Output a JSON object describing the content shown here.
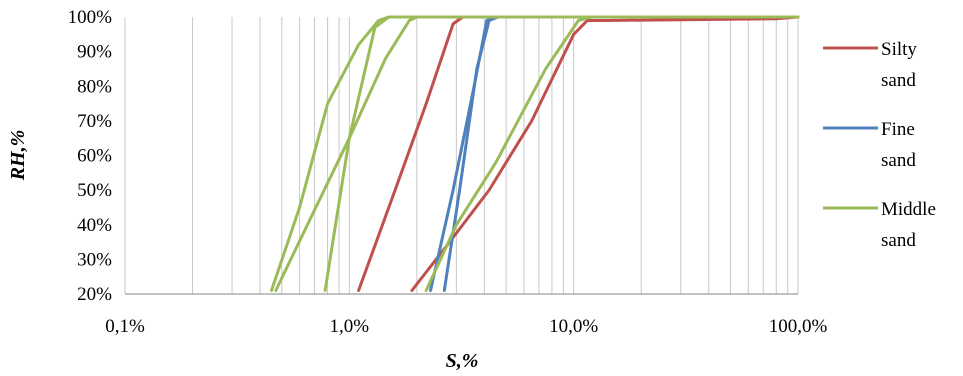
{
  "chart_data": {
    "type": "line",
    "x_scale": "log",
    "xlim": [
      0.1,
      100
    ],
    "ylim": [
      20,
      100
    ],
    "xlabel": "S,%",
    "ylabel": "RH,%",
    "x_ticks": [
      0.1,
      1,
      10,
      100
    ],
    "x_tick_labels": [
      "0,1%",
      "1,0%",
      "10,0%",
      "100,0%"
    ],
    "y_ticks": [
      20,
      30,
      40,
      50,
      60,
      70,
      80,
      90,
      100
    ],
    "y_tick_labels": [
      "20%",
      "30%",
      "40%",
      "50%",
      "60%",
      "70%",
      "80%",
      "90%",
      "100%"
    ],
    "grid": "vertical",
    "legend_position": "right",
    "series": [
      {
        "name": "Silty sand",
        "color": "#c0504d",
        "curves": [
          [
            [
              1.1,
              21
            ],
            [
              1.6,
              50
            ],
            [
              2.2,
              75
            ],
            [
              2.9,
              98
            ],
            [
              3.2,
              100
            ],
            [
              10,
              100
            ],
            [
              100,
              100
            ]
          ],
          [
            [
              1.9,
              21
            ],
            [
              2.8,
              35
            ],
            [
              4.2,
              50
            ],
            [
              6.5,
              70
            ],
            [
              10,
              95
            ],
            [
              11.5,
              99
            ],
            [
              14,
              99
            ],
            [
              80,
              99.5
            ],
            [
              100,
              100
            ]
          ]
        ]
      },
      {
        "name": "Fine sand",
        "color": "#4f81bd",
        "curves": [
          [
            [
              2.3,
              21
            ],
            [
              2.9,
              50
            ],
            [
              3.6,
              80
            ],
            [
              4.1,
              99
            ],
            [
              4.5,
              100
            ],
            [
              100,
              100
            ]
          ],
          [
            [
              2.65,
              21
            ],
            [
              3.1,
              50
            ],
            [
              3.7,
              85
            ],
            [
              4.2,
              99
            ],
            [
              4.6,
              100
            ],
            [
              100,
              100
            ]
          ]
        ]
      },
      {
        "name": "Middle sand",
        "color": "#9bbb59",
        "curves": [
          [
            [
              0.45,
              21
            ],
            [
              0.6,
              45
            ],
            [
              0.8,
              75
            ],
            [
              1.1,
              92
            ],
            [
              1.35,
              99
            ],
            [
              1.5,
              100
            ],
            [
              100,
              100
            ]
          ],
          [
            [
              0.47,
              21
            ],
            [
              0.65,
              40
            ],
            [
              1.0,
              65
            ],
            [
              1.45,
              88
            ],
            [
              1.85,
              99
            ],
            [
              2.0,
              100
            ],
            [
              100,
              100
            ]
          ],
          [
            [
              0.78,
              21
            ],
            [
              1.0,
              65
            ],
            [
              1.3,
              97
            ],
            [
              1.5,
              100
            ],
            [
              100,
              100
            ]
          ],
          [
            [
              2.2,
              21
            ],
            [
              3.0,
              40
            ],
            [
              4.5,
              58
            ],
            [
              7.5,
              85
            ],
            [
              10.5,
              99
            ],
            [
              12,
              100
            ],
            [
              100,
              100
            ]
          ]
        ]
      }
    ],
    "legend": [
      {
        "line1": "Silty",
        "line2": "sand",
        "color": "#c0504d"
      },
      {
        "line1": "Fine",
        "line2": "sand",
        "color": "#4f81bd"
      },
      {
        "line1": "Middle",
        "line2": "sand",
        "color": "#9bbb59"
      }
    ]
  }
}
